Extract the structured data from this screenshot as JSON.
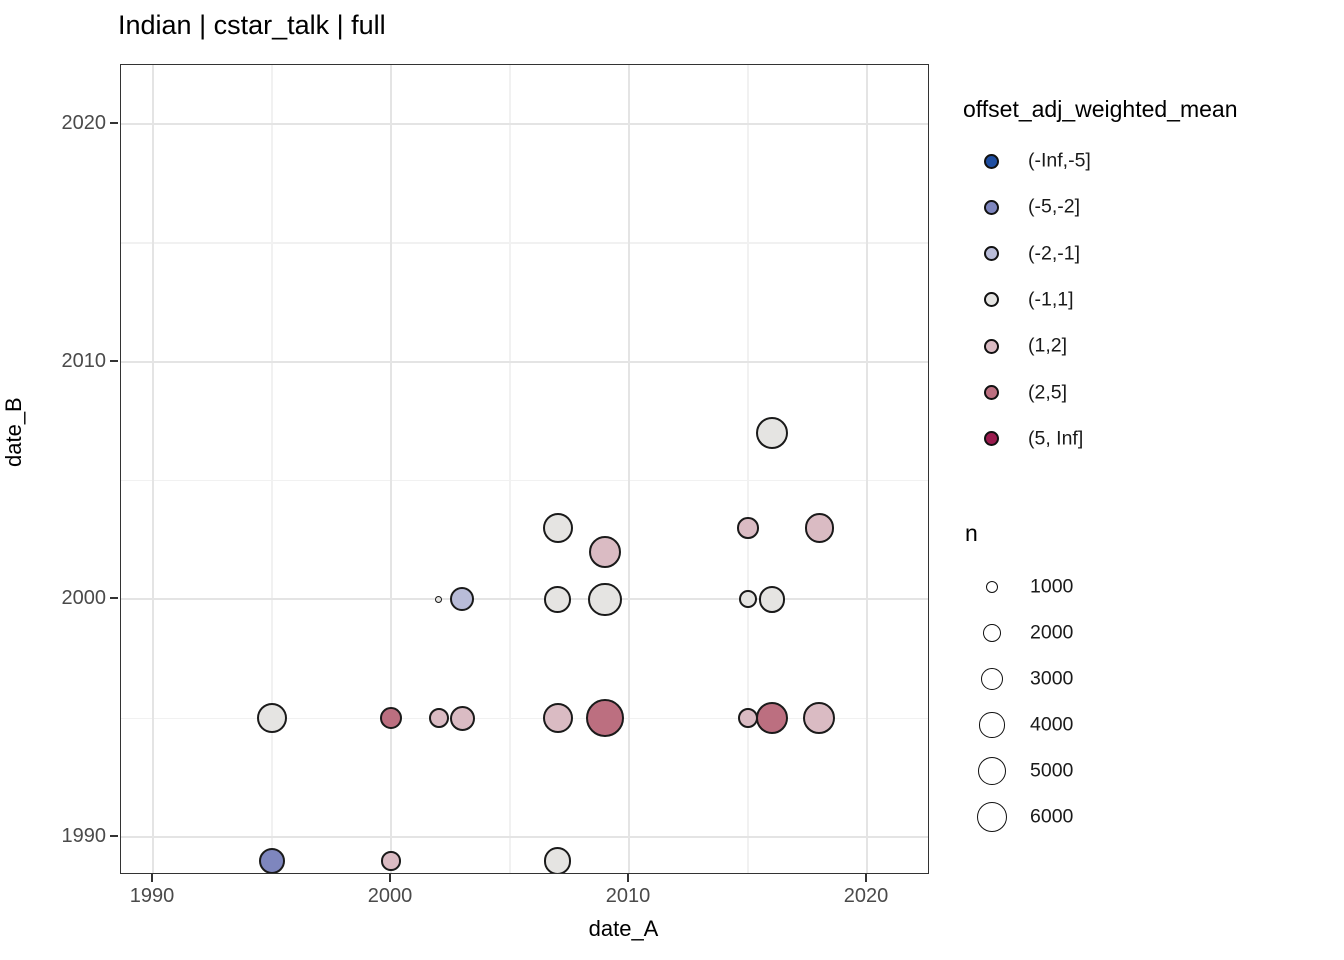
{
  "title": "Indian | cstar_talk | full",
  "axes": {
    "x": {
      "label": "date_A"
    },
    "y": {
      "label": "date_B"
    }
  },
  "legend_color": {
    "title": "offset_adj_weighted_mean",
    "entries": [
      {
        "label": "(-Inf,-5]",
        "color": "#1F4EA1"
      },
      {
        "label": "(-5,-2]",
        "color": "#7E86BE"
      },
      {
        "label": "(-2,-1]",
        "color": "#B9BCD8"
      },
      {
        "label": "(-1,1]",
        "color": "#E5E4E2"
      },
      {
        "label": "(1,2]",
        "color": "#DABBC3"
      },
      {
        "label": "(2,5]",
        "color": "#BC6F80"
      },
      {
        "label": "(5, Inf]",
        "color": "#9A1B4E"
      }
    ]
  },
  "legend_size": {
    "title": "n",
    "entries": [
      "1000",
      "2000",
      "3000",
      "4000",
      "5000",
      "6000"
    ]
  },
  "chart_data": {
    "type": "scatter",
    "title": "Indian | cstar_talk | full",
    "xlabel": "date_A",
    "ylabel": "date_B",
    "xlim": [
      1988.7,
      2022.6
    ],
    "ylim": [
      1988.5,
      2022.5
    ],
    "x_major_ticks": [
      1990,
      2000,
      2010,
      2020
    ],
    "y_major_ticks": [
      1990,
      2000,
      2010,
      2020
    ],
    "x_minor_ticks": [
      1995,
      2005,
      2015
    ],
    "y_minor_ticks": [
      1995,
      2005,
      2015
    ],
    "grid": true,
    "color_variable": "offset_adj_weighted_mean",
    "size_variable": "n",
    "points": [
      {
        "x": 1995,
        "y": 1989,
        "bin": "(-5,-2]",
        "n": 4400
      },
      {
        "x": 2000,
        "y": 1989,
        "bin": "(1,2]",
        "n": 2400
      },
      {
        "x": 2007,
        "y": 1989,
        "bin": "(-1,1]",
        "n": 4700
      },
      {
        "x": 1995,
        "y": 1995,
        "bin": "(-1,1]",
        "n": 5600
      },
      {
        "x": 2000,
        "y": 1995,
        "bin": "(2,5]",
        "n": 3000
      },
      {
        "x": 2002,
        "y": 1995,
        "bin": "(1,2]",
        "n": 2500
      },
      {
        "x": 2003,
        "y": 1995,
        "bin": "(1,2]",
        "n": 4000
      },
      {
        "x": 2007,
        "y": 1995,
        "bin": "(1,2]",
        "n": 5600
      },
      {
        "x": 2009,
        "y": 1995,
        "bin": "(2,5]",
        "n": 9000
      },
      {
        "x": 2015,
        "y": 1995,
        "bin": "(1,2]",
        "n": 2500
      },
      {
        "x": 2016,
        "y": 1995,
        "bin": "(2,5]",
        "n": 6400
      },
      {
        "x": 2018,
        "y": 1995,
        "bin": "(1,2]",
        "n": 6400
      },
      {
        "x": 2002,
        "y": 2000,
        "bin": "(-1,1]",
        "n": 350
      },
      {
        "x": 2003,
        "y": 2000,
        "bin": "(-2,-1]",
        "n": 3600
      },
      {
        "x": 2007,
        "y": 2000,
        "bin": "(-1,1]",
        "n": 4400
      },
      {
        "x": 2009,
        "y": 2000,
        "bin": "(-1,1]",
        "n": 7000
      },
      {
        "x": 2015,
        "y": 2000,
        "bin": "(-1,1]",
        "n": 2000
      },
      {
        "x": 2016,
        "y": 2000,
        "bin": "(-1,1]",
        "n": 4400
      },
      {
        "x": 2007,
        "y": 2003,
        "bin": "(-1,1]",
        "n": 5600
      },
      {
        "x": 2009,
        "y": 2002,
        "bin": "(1,2]",
        "n": 6400
      },
      {
        "x": 2015,
        "y": 2003,
        "bin": "(1,2]",
        "n": 2900
      },
      {
        "x": 2018,
        "y": 2003,
        "bin": "(1,2]",
        "n": 5400
      },
      {
        "x": 2016,
        "y": 2007,
        "bin": "(-1,1]",
        "n": 6400
      }
    ]
  }
}
